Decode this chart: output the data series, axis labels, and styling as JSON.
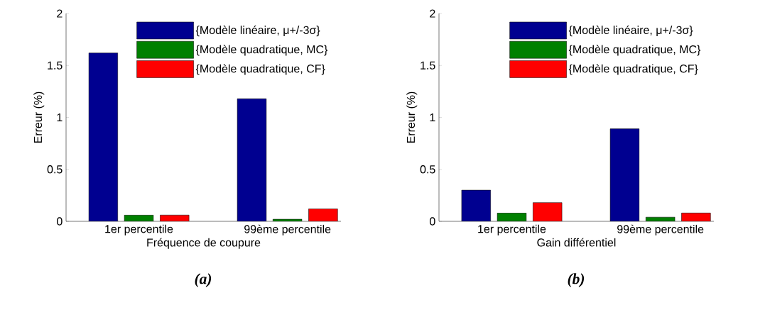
{
  "chart_data": [
    {
      "type": "bar",
      "xlabel": "Fréquence de coupure",
      "ylabel": "Erreur (%)",
      "categories": [
        "1er percentile",
        "99ème percentile"
      ],
      "series": [
        {
          "name": "{Modèle linéaire, μ+/-3σ}",
          "color": "#000090",
          "values": [
            1.62,
            1.18
          ]
        },
        {
          "name": "{Modèle quadratique, MC}",
          "color": "#008000",
          "values": [
            0.06,
            0.02
          ]
        },
        {
          "name": "{Modèle quadratique, CF}",
          "color": "#ff0000",
          "values": [
            0.06,
            0.12
          ]
        }
      ],
      "ylim": [
        0,
        2
      ],
      "yticks": [
        0,
        0.5,
        1,
        1.5,
        2
      ],
      "legend": "top right",
      "grid": false,
      "annotations": [
        "(a)"
      ]
    },
    {
      "type": "bar",
      "xlabel": "Gain différentiel",
      "ylabel": "Erreur (%)",
      "categories": [
        "1er percentile",
        "99ème percentile"
      ],
      "series": [
        {
          "name": "{Modèle linéaire, μ+/-3σ}",
          "color": "#000090",
          "values": [
            0.3,
            0.89
          ]
        },
        {
          "name": "{Modèle quadratique, MC}",
          "color": "#008000",
          "values": [
            0.08,
            0.04
          ]
        },
        {
          "name": "{Modèle quadratique, CF}",
          "color": "#ff0000",
          "values": [
            0.18,
            0.08
          ]
        }
      ],
      "ylim": [
        0,
        2
      ],
      "yticks": [
        0,
        0.5,
        1,
        1.5,
        2
      ],
      "legend": "top right",
      "grid": false,
      "annotations": [
        "(b)"
      ]
    }
  ]
}
